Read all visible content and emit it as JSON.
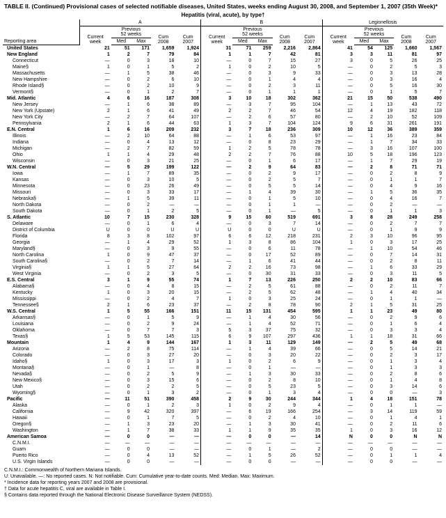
{
  "title": "TABLE II. (Continued) Provisional cases of selected notifiable diseases, United States, weeks ending August 30, 2008, and September 1, 2007 (35th Week)*",
  "section_title": "Hepatitis (viral, acute), by type†",
  "groups": [
    {
      "name": "A",
      "sub": "Previous",
      "sub2": "52 weeks"
    },
    {
      "name": "B",
      "sub": "Previous",
      "sub2": "52 weeks"
    },
    {
      "name": "Legionellosis",
      "sub": "Previous",
      "sub2": "52 weeks"
    }
  ],
  "col_headers": {
    "area": "Reporting area",
    "current": "Current week",
    "med": "Med",
    "max": "Max",
    "cum08": "Cum 2008",
    "cum07": "Cum 2007"
  },
  "rows": [
    {
      "b": 1,
      "a": "United States",
      "v": [
        "21",
        "51",
        "171",
        "1,659",
        "1,924",
        "31",
        "71",
        "259",
        "2,216",
        "2,864",
        "41",
        "54",
        "125",
        "1,660",
        "1,567"
      ]
    },
    {
      "b": 1,
      "a": "New England",
      "v": [
        "1",
        "2",
        "7",
        "79",
        "84",
        "1",
        "1",
        "7",
        "42",
        "81",
        "3",
        "3",
        "11",
        "81",
        "97"
      ]
    },
    {
      "a": "Connecticut",
      "v": [
        "—",
        "0",
        "3",
        "18",
        "10",
        "—",
        "0",
        "7",
        "15",
        "27",
        "3",
        "0",
        "5",
        "26",
        "25"
      ]
    },
    {
      "a": "Maine§",
      "v": [
        "1",
        "0",
        "1",
        "5",
        "2",
        "1",
        "0",
        "2",
        "10",
        "5",
        "—",
        "0",
        "2",
        "5",
        "3"
      ]
    },
    {
      "a": "Massachusetts",
      "v": [
        "—",
        "1",
        "5",
        "38",
        "46",
        "—",
        "0",
        "3",
        "9",
        "33",
        "—",
        "0",
        "3",
        "13",
        "28"
      ]
    },
    {
      "a": "New Hampshire",
      "v": [
        "—",
        "0",
        "2",
        "6",
        "10",
        "—",
        "0",
        "1",
        "4",
        "4",
        "—",
        "0",
        "3",
        "16",
        "4"
      ]
    },
    {
      "a": "Rhode Island§",
      "v": [
        "—",
        "0",
        "2",
        "10",
        "9",
        "—",
        "0",
        "2",
        "3",
        "11",
        "—",
        "0",
        "5",
        "16",
        "30"
      ]
    },
    {
      "a": "Vermont§",
      "v": [
        "—",
        "0",
        "1",
        "2",
        "7",
        "—",
        "0",
        "1",
        "1",
        "1",
        "—",
        "0",
        "1",
        "5",
        "7"
      ]
    },
    {
      "b": 1,
      "a": "Mid. Atlantic",
      "v": [
        "4",
        "6",
        "16",
        "187",
        "308",
        "3",
        "10",
        "18",
        "302",
        "362",
        "21",
        "15",
        "50",
        "538",
        "490"
      ]
    },
    {
      "a": "New Jersey",
      "v": [
        "—",
        "1",
        "6",
        "38",
        "89",
        "—",
        "3",
        "7",
        "95",
        "104",
        "—",
        "1",
        "13",
        "43",
        "72"
      ]
    },
    {
      "a": "New York (Upstate)",
      "v": [
        "2",
        "1",
        "6",
        "41",
        "49",
        "2",
        "2",
        "7",
        "46",
        "54",
        "12",
        "4",
        "19",
        "182",
        "118"
      ]
    },
    {
      "a": "New York City",
      "v": [
        "—",
        "2",
        "7",
        "64",
        "107",
        "—",
        "2",
        "6",
        "57",
        "80",
        "—",
        "2",
        "10",
        "52",
        "109"
      ]
    },
    {
      "a": "Pennsylvania",
      "v": [
        "2",
        "1",
        "6",
        "44",
        "63",
        "1",
        "3",
        "7",
        "104",
        "124",
        "9",
        "6",
        "31",
        "261",
        "191"
      ]
    },
    {
      "b": 1,
      "a": "E.N. Central",
      "v": [
        "1",
        "6",
        "16",
        "209",
        "232",
        "3",
        "7",
        "18",
        "236",
        "309",
        "10",
        "12",
        "36",
        "389",
        "359"
      ]
    },
    {
      "a": "Illinois",
      "v": [
        "—",
        "2",
        "10",
        "64",
        "88",
        "—",
        "1",
        "6",
        "53",
        "97",
        "—",
        "1",
        "16",
        "23",
        "84"
      ]
    },
    {
      "a": "Indiana",
      "v": [
        "—",
        "0",
        "4",
        "13",
        "12",
        "—",
        "0",
        "8",
        "23",
        "29",
        "—",
        "1",
        "7",
        "34",
        "33"
      ]
    },
    {
      "a": "Michigan",
      "v": [
        "—",
        "2",
        "7",
        "82",
        "59",
        "1",
        "2",
        "5",
        "78",
        "78",
        "—",
        "3",
        "16",
        "107",
        "100"
      ]
    },
    {
      "a": "Ohio",
      "v": [
        "1",
        "1",
        "4",
        "29",
        "48",
        "2",
        "2",
        "7",
        "76",
        "88",
        "10",
        "5",
        "18",
        "196",
        "123"
      ]
    },
    {
      "a": "Wisconsin",
      "v": [
        "—",
        "0",
        "3",
        "21",
        "25",
        "—",
        "0",
        "1",
        "6",
        "17",
        "—",
        "1",
        "7",
        "29",
        "19"
      ]
    },
    {
      "b": 1,
      "a": "W.N. Central",
      "v": [
        "—",
        "5",
        "29",
        "199",
        "122",
        "—",
        "2",
        "9",
        "64",
        "83",
        "—",
        "2",
        "8",
        "71",
        "71"
      ]
    },
    {
      "a": "Iowa",
      "v": [
        "—",
        "1",
        "7",
        "89",
        "35",
        "—",
        "0",
        "2",
        "9",
        "17",
        "—",
        "0",
        "2",
        "8",
        "9"
      ]
    },
    {
      "a": "Kansas",
      "v": [
        "—",
        "0",
        "3",
        "10",
        "5",
        "—",
        "0",
        "2",
        "5",
        "7",
        "—",
        "0",
        "1",
        "1",
        "7"
      ]
    },
    {
      "a": "Minnesota",
      "v": [
        "—",
        "0",
        "23",
        "26",
        "49",
        "—",
        "0",
        "5",
        "5",
        "14",
        "—",
        "0",
        "4",
        "9",
        "16"
      ]
    },
    {
      "a": "Missouri",
      "v": [
        "—",
        "0",
        "3",
        "33",
        "17",
        "—",
        "1",
        "4",
        "39",
        "30",
        "—",
        "1",
        "5",
        "36",
        "35"
      ]
    },
    {
      "a": "Nebraska§",
      "v": [
        "—",
        "1",
        "5",
        "39",
        "11",
        "—",
        "0",
        "1",
        "5",
        "10",
        "—",
        "0",
        "4",
        "16",
        "7"
      ]
    },
    {
      "a": "North Dakota",
      "v": [
        "—",
        "0",
        "2",
        "—",
        "—",
        "—",
        "0",
        "1",
        "1",
        "—",
        "—",
        "0",
        "2",
        "—",
        "—"
      ]
    },
    {
      "a": "South Dakota",
      "v": [
        "—",
        "0",
        "1",
        "2",
        "5",
        "—",
        "0",
        "1",
        "—",
        "5",
        "—",
        "0",
        "1",
        "1",
        "3"
      ]
    },
    {
      "b": 1,
      "a": "S. Atlantic",
      "v": [
        "10",
        "7",
        "15",
        "230",
        "328",
        "9",
        "15",
        "60",
        "519",
        "691",
        "3",
        "8",
        "28",
        "249",
        "258"
      ]
    },
    {
      "a": "Delaware",
      "v": [
        "—",
        "0",
        "1",
        "6",
        "4",
        "—",
        "0",
        "3",
        "7",
        "14",
        "—",
        "0",
        "2",
        "7",
        "7"
      ]
    },
    {
      "a": "District of Columbia",
      "v": [
        "U",
        "0",
        "0",
        "U",
        "U",
        "U",
        "0",
        "0",
        "U",
        "U",
        "—",
        "0",
        "1",
        "9",
        "9"
      ]
    },
    {
      "a": "Florida",
      "v": [
        "8",
        "3",
        "8",
        "102",
        "97",
        "6",
        "6",
        "12",
        "218",
        "231",
        "2",
        "3",
        "10",
        "96",
        "95"
      ]
    },
    {
      "a": "Georgia",
      "v": [
        "—",
        "1",
        "4",
        "29",
        "52",
        "1",
        "3",
        "8",
        "86",
        "104",
        "1",
        "0",
        "3",
        "17",
        "25"
      ]
    },
    {
      "a": "Maryland§",
      "v": [
        "—",
        "0",
        "3",
        "9",
        "55",
        "—",
        "0",
        "6",
        "11",
        "78",
        "—",
        "1",
        "10",
        "54",
        "46"
      ]
    },
    {
      "a": "North Carolina",
      "v": [
        "1",
        "0",
        "9",
        "47",
        "37",
        "—",
        "0",
        "17",
        "52",
        "89",
        "—",
        "0",
        "7",
        "14",
        "31"
      ]
    },
    {
      "a": "South Carolina§",
      "v": [
        "—",
        "0",
        "2",
        "7",
        "14",
        "—",
        "1",
        "6",
        "41",
        "44",
        "—",
        "0",
        "2",
        "8",
        "11"
      ]
    },
    {
      "a": "Virginia§",
      "v": [
        "1",
        "1",
        "5",
        "27",
        "64",
        "2",
        "2",
        "16",
        "73",
        "98",
        "—",
        "1",
        "6",
        "33",
        "29"
      ]
    },
    {
      "a": "West Virginia",
      "v": [
        "—",
        "0",
        "2",
        "3",
        "5",
        "—",
        "0",
        "30",
        "31",
        "33",
        "—",
        "0",
        "3",
        "11",
        "5"
      ]
    },
    {
      "b": 1,
      "a": "E.S. Central",
      "v": [
        "3",
        "1",
        "9",
        "55",
        "74",
        "1",
        "7",
        "13",
        "226",
        "250",
        "2",
        "2",
        "10",
        "83",
        "66"
      ]
    },
    {
      "a": "Alabama§",
      "v": [
        "—",
        "0",
        "4",
        "8",
        "15",
        "—",
        "2",
        "5",
        "61",
        "88",
        "—",
        "0",
        "2",
        "11",
        "7"
      ]
    },
    {
      "a": "Kentucky",
      "v": [
        "1",
        "0",
        "3",
        "20",
        "15",
        "—",
        "2",
        "5",
        "62",
        "48",
        "—",
        "1",
        "4",
        "40",
        "34"
      ]
    },
    {
      "a": "Mississippi",
      "v": [
        "—",
        "0",
        "2",
        "4",
        "7",
        "1",
        "0",
        "3",
        "25",
        "24",
        "—",
        "0",
        "1",
        "1",
        "—"
      ]
    },
    {
      "a": "Tennessee§",
      "v": [
        "2",
        "1",
        "6",
        "23",
        "37",
        "—",
        "2",
        "8",
        "78",
        "90",
        "2",
        "1",
        "5",
        "31",
        "25"
      ]
    },
    {
      "b": 1,
      "a": "W.S. Central",
      "v": [
        "1",
        "5",
        "55",
        "166",
        "151",
        "11",
        "15",
        "131",
        "454",
        "595",
        "1",
        "1",
        "23",
        "49",
        "80"
      ]
    },
    {
      "a": "Arkansas§",
      "v": [
        "—",
        "0",
        "1",
        "5",
        "9",
        "—",
        "1",
        "4",
        "30",
        "56",
        "—",
        "0",
        "2",
        "9",
        "6"
      ]
    },
    {
      "a": "Louisiana",
      "v": [
        "—",
        "0",
        "2",
        "9",
        "24",
        "—",
        "1",
        "4",
        "52",
        "71",
        "—",
        "0",
        "1",
        "6",
        "4"
      ]
    },
    {
      "a": "Oklahoma",
      "v": [
        "—",
        "0",
        "7",
        "7",
        "3",
        "5",
        "3",
        "37",
        "75",
        "32",
        "—",
        "0",
        "3",
        "3",
        "4"
      ]
    },
    {
      "a": "Texas§",
      "v": [
        "1",
        "5",
        "53",
        "145",
        "115",
        "6",
        "9",
        "107",
        "297",
        "436",
        "1",
        "1",
        "18",
        "31",
        "66"
      ]
    },
    {
      "b": 1,
      "a": "Mountain",
      "v": [
        "1",
        "4",
        "9",
        "144",
        "167",
        "1",
        "3",
        "11",
        "129",
        "149",
        "—",
        "2",
        "5",
        "49",
        "68"
      ]
    },
    {
      "a": "Arizona",
      "v": [
        "—",
        "2",
        "8",
        "75",
        "114",
        "—",
        "1",
        "4",
        "39",
        "66",
        "—",
        "0",
        "5",
        "14",
        "21"
      ]
    },
    {
      "a": "Colorado",
      "v": [
        "—",
        "0",
        "3",
        "27",
        "20",
        "—",
        "0",
        "3",
        "20",
        "22",
        "—",
        "0",
        "2",
        "3",
        "17"
      ]
    },
    {
      "a": "Idaho§",
      "v": [
        "1",
        "0",
        "3",
        "17",
        "3",
        "1",
        "0",
        "2",
        "6",
        "9",
        "—",
        "0",
        "1",
        "3",
        "4"
      ]
    },
    {
      "a": "Montana§",
      "v": [
        "—",
        "0",
        "1",
        "—",
        "8",
        "—",
        "0",
        "1",
        "—",
        "—",
        "—",
        "0",
        "1",
        "3",
        "3"
      ]
    },
    {
      "a": "Nevada§",
      "v": [
        "—",
        "0",
        "2",
        "5",
        "9",
        "—",
        "1",
        "3",
        "30",
        "33",
        "—",
        "0",
        "2",
        "8",
        "6"
      ]
    },
    {
      "a": "New Mexico§",
      "v": [
        "—",
        "0",
        "3",
        "15",
        "6",
        "—",
        "0",
        "2",
        "8",
        "10",
        "—",
        "0",
        "1",
        "4",
        "8"
      ]
    },
    {
      "a": "Utah",
      "v": [
        "—",
        "0",
        "2",
        "2",
        "5",
        "—",
        "0",
        "5",
        "23",
        "5",
        "—",
        "0",
        "3",
        "14",
        "6"
      ]
    },
    {
      "a": "Wyoming§",
      "v": [
        "—",
        "0",
        "1",
        "3",
        "2",
        "—",
        "0",
        "1",
        "3",
        "4",
        "—",
        "0",
        "0",
        "—",
        "3"
      ]
    },
    {
      "b": 1,
      "a": "Pacific",
      "v": [
        "—",
        "11",
        "51",
        "390",
        "458",
        "2",
        "9",
        "30",
        "244",
        "344",
        "1",
        "4",
        "18",
        "151",
        "78"
      ]
    },
    {
      "a": "Alaska",
      "v": [
        "—",
        "0",
        "1",
        "2",
        "3",
        "1",
        "0",
        "2",
        "9",
        "4",
        "—",
        "0",
        "1",
        "1",
        "—"
      ]
    },
    {
      "a": "California",
      "v": [
        "—",
        "9",
        "42",
        "320",
        "397",
        "—",
        "6",
        "19",
        "166",
        "254",
        "—",
        "3",
        "14",
        "119",
        "59"
      ]
    },
    {
      "a": "Hawaii",
      "v": [
        "—",
        "0",
        "1",
        "7",
        "5",
        "—",
        "0",
        "2",
        "4",
        "10",
        "—",
        "0",
        "1",
        "4",
        "1"
      ]
    },
    {
      "a": "Oregon§",
      "v": [
        "—",
        "1",
        "3",
        "23",
        "20",
        "—",
        "1",
        "3",
        "30",
        "41",
        "—",
        "0",
        "2",
        "11",
        "6"
      ]
    },
    {
      "a": "Washington",
      "v": [
        "—",
        "1",
        "7",
        "38",
        "33",
        "1",
        "1",
        "9",
        "35",
        "35",
        "1",
        "0",
        "3",
        "16",
        "12"
      ]
    },
    {
      "b": 1,
      "a": "American Samoa",
      "v": [
        "—",
        "0",
        "0",
        "—",
        "—",
        "—",
        "0",
        "0",
        "—",
        "14",
        "N",
        "0",
        "0",
        "N",
        "N"
      ]
    },
    {
      "a": "C.N.M.I.",
      "v": [
        "—",
        "—",
        "—",
        "—",
        "—",
        "—",
        "—",
        "—",
        "—",
        "—",
        "—",
        "—",
        "—",
        "—",
        "—"
      ]
    },
    {
      "a": "Guam",
      "v": [
        "—",
        "0",
        "0",
        "—",
        "—",
        "—",
        "0",
        "1",
        "—",
        "2",
        "—",
        "0",
        "0",
        "—",
        "—"
      ]
    },
    {
      "a": "Puerto Rico",
      "v": [
        "—",
        "0",
        "4",
        "13",
        "52",
        "—",
        "1",
        "5",
        "26",
        "52",
        "—",
        "0",
        "1",
        "1",
        "4"
      ]
    },
    {
      "a": "U.S. Virgin Islands",
      "v": [
        "—",
        "0",
        "0",
        "—",
        "—",
        "—",
        "0",
        "0",
        "—",
        "—",
        "—",
        "0",
        "0",
        "—",
        "—"
      ]
    }
  ],
  "footnotes": [
    "C.N.M.I.: Commonwealth of Northern Mariana Islands.",
    "U: Unavailable.   —: No reported cases.   N: Not notifiable.   Cum: Cumulative year-to-date counts.   Med: Median.   Max: Maximum.",
    "* Incidence data for reporting years 2007 and 2008 are provisional.",
    "† Data for acute hepatitis C, viral are available in Table I.",
    "§ Contains data reported through the National Electronic Disease Surveillance System (NEDSS)."
  ]
}
